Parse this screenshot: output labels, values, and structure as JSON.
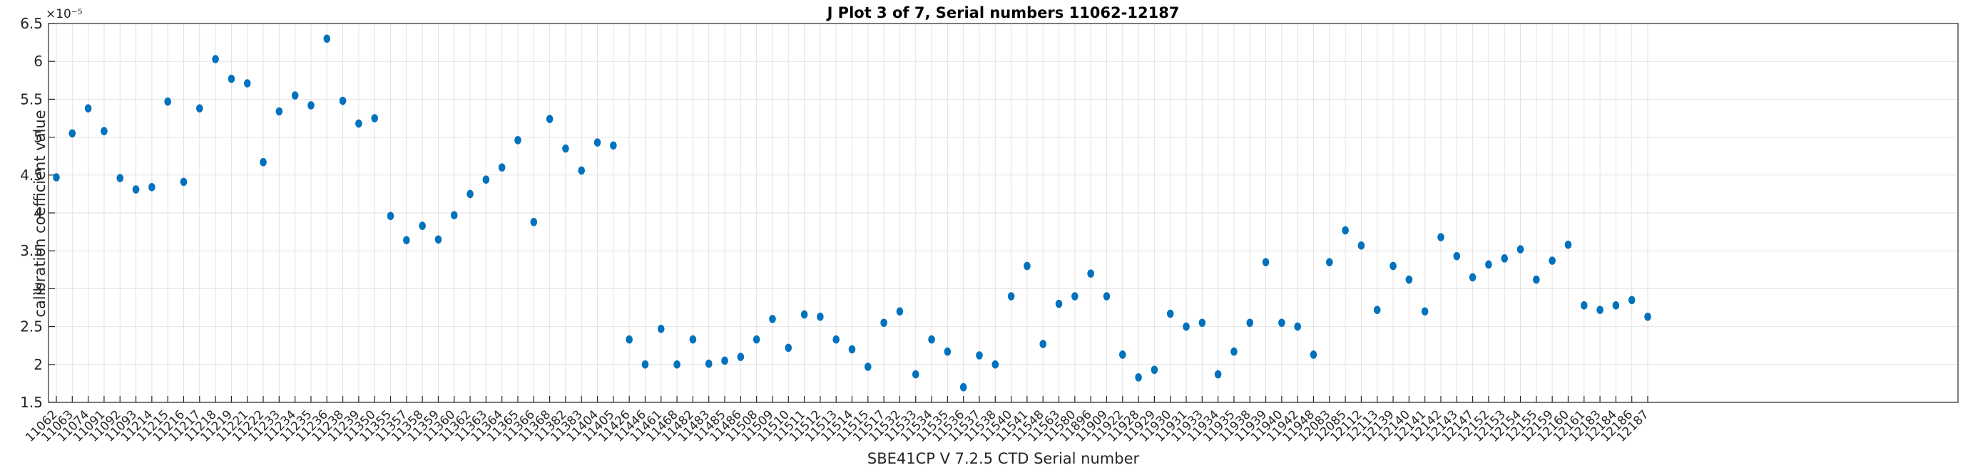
{
  "figure": {
    "title": "J Plot 3 of 7, Serial numbers 11062-12187",
    "ylabel": "calibration coefficient value",
    "xlabel": "SBE41CP V 7.2.5 CTD Serial number",
    "exponent_label": "×10⁻⁵"
  },
  "chart_data": {
    "type": "scatter",
    "title": "J Plot 3 of 7, Serial numbers 11062-12187",
    "xlabel": "SBE41CP V 7.2.5 CTD Serial number",
    "ylabel": "calibration coefficient value",
    "value_scale": "1e-5",
    "ylim": [
      1.5,
      6.5
    ],
    "y_ticks": [
      1.5,
      2,
      2.5,
      3,
      3.5,
      4,
      4.5,
      5,
      5.5,
      6,
      6.5
    ],
    "grid": true,
    "legend": "none",
    "marker_color": "#0072BD",
    "axis_color": "#262626",
    "grid_color": "#e2e2e2",
    "x_tick_labels": [
      "11062",
      "11063",
      "11074",
      "11091",
      "11092",
      "11093",
      "11214",
      "11215",
      "11216",
      "11217",
      "11218",
      "11219",
      "11221",
      "11222",
      "11233",
      "11234",
      "11235",
      "11236",
      "11238",
      "11239",
      "11350",
      "11355",
      "11357",
      "11358",
      "11359",
      "11360",
      "11362",
      "11363",
      "11364",
      "11365",
      "11366",
      "11368",
      "11382",
      "11383",
      "11404",
      "11405",
      "11426",
      "11446",
      "11461",
      "11468",
      "11482",
      "11483",
      "11485",
      "11486",
      "11508",
      "11509",
      "11510",
      "11511",
      "11512",
      "11513",
      "11514",
      "11515",
      "11517",
      "11532",
      "11533",
      "11534",
      "11535",
      "11536",
      "11537",
      "11538",
      "11540",
      "11541",
      "11548",
      "11563",
      "11580",
      "11896",
      "11909",
      "11922",
      "11928",
      "11929",
      "11930",
      "11931",
      "11933",
      "11934",
      "11935",
      "11938",
      "11939",
      "11940",
      "11942",
      "11948",
      "12083",
      "12085",
      "12112",
      "12113",
      "12139",
      "12140",
      "12141",
      "12142",
      "12143",
      "12147",
      "12152",
      "12153",
      "12154",
      "12155",
      "12159",
      "12160",
      "12161",
      "12183",
      "12184",
      "12186",
      "12187"
    ],
    "values": [
      4.47,
      5.05,
      5.38,
      5.08,
      4.46,
      4.31,
      4.34,
      5.47,
      4.41,
      5.38,
      6.03,
      5.77,
      5.71,
      4.67,
      5.34,
      5.55,
      5.42,
      6.3,
      5.48,
      5.18,
      5.25,
      3.96,
      3.64,
      3.83,
      3.65,
      3.97,
      4.25,
      4.44,
      4.6,
      4.96,
      3.88,
      5.24,
      4.85,
      4.56,
      4.93,
      4.89,
      2.33,
      2.0,
      2.47,
      2.0,
      2.33,
      2.01,
      2.05,
      2.1,
      2.33,
      2.6,
      2.22,
      2.66,
      2.63,
      2.33,
      2.2,
      1.97,
      2.55,
      2.7,
      1.87,
      2.33,
      2.17,
      1.7,
      2.12,
      2.0,
      2.9,
      3.3,
      2.27,
      2.8,
      2.9,
      3.2,
      2.9,
      2.13,
      1.83,
      1.93,
      2.67,
      2.5,
      2.55,
      1.87,
      2.17,
      2.55,
      3.35,
      2.55,
      2.5,
      2.13,
      3.35,
      3.77,
      3.57,
      2.72,
      3.3,
      3.12,
      2.7,
      3.68,
      3.43,
      3.15,
      3.32,
      3.4,
      3.52,
      3.12,
      3.37,
      3.58,
      2.78,
      2.72,
      2.78,
      2.85,
      2.63
    ]
  }
}
